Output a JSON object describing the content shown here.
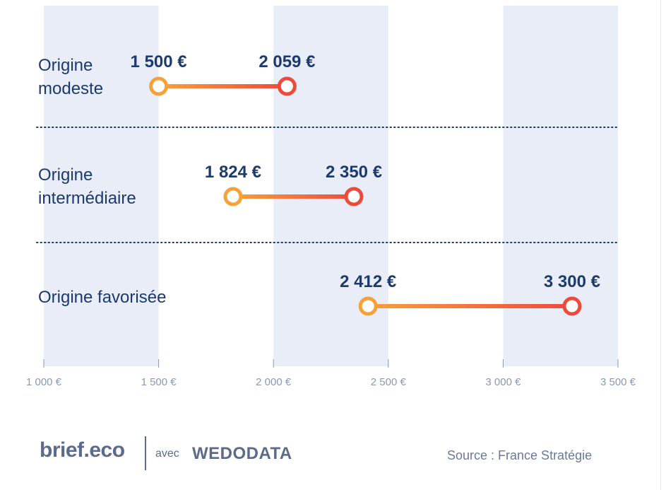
{
  "chart_data": {
    "type": "dumbbell",
    "title": "",
    "xlabel": "",
    "ylabel": "",
    "xlim": [
      1000,
      3500
    ],
    "x_ticks": [
      1000,
      1500,
      2000,
      2500,
      3000,
      3500
    ],
    "x_tick_labels": [
      "1 000 €",
      "1 500 €",
      "2 000 €",
      "2 500 €",
      "3 000 €",
      "3 500 €"
    ],
    "categories": [
      {
        "label_lines": [
          "Origine",
          "modeste"
        ],
        "start": 1500,
        "end": 2059,
        "start_label": "1 500 €",
        "end_label": "2 059 €"
      },
      {
        "label_lines": [
          "Origine",
          "intermédiaire"
        ],
        "start": 1824,
        "end": 2350,
        "start_label": "1 824 €",
        "end_label": "2 350 €"
      },
      {
        "label_lines": [
          "Origine favorisée"
        ],
        "start": 2412,
        "end": 3300,
        "start_label": "2 412 €",
        "end_label": "3 300 €"
      }
    ],
    "colors": {
      "start": "#f7a13a",
      "end": "#ee4a3c",
      "value_label": "#1d3a6e",
      "category_label": "#1d3a6e",
      "band": "#e8edf7",
      "tick": "#8b97b3",
      "divider": "#1d3a6e"
    },
    "grid": "alternating-bands"
  },
  "footer": {
    "brand": "brief.eco",
    "avec": "avec",
    "partner": "WEDODATA",
    "source": "Source : France Stratégie"
  }
}
